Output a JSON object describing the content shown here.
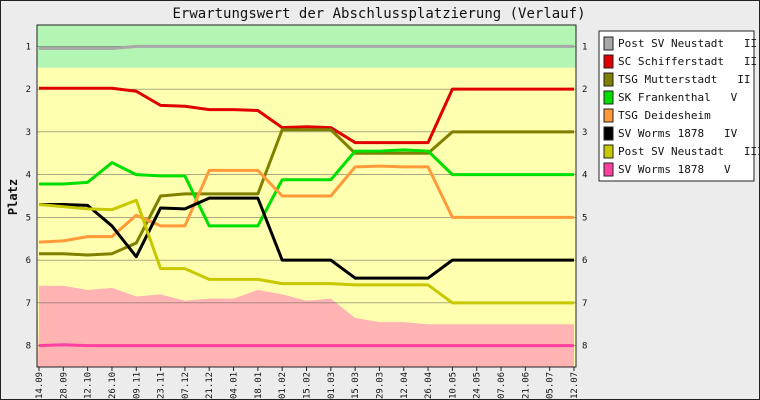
{
  "chart_data": {
    "type": "line",
    "title": "Erwartungswert der Abschlussplatzierung (Verlauf)",
    "ylabel": "Platz",
    "xlabel": "",
    "ylim": [
      8.5,
      0.5
    ],
    "y_ticks": [
      "1",
      "2",
      "3",
      "4",
      "5",
      "6",
      "7",
      "8"
    ],
    "x": [
      "14.09",
      "28.09",
      "12.10",
      "26.10",
      "09.11",
      "23.11",
      "07.12",
      "21.12",
      "04.01",
      "18.01",
      "01.02",
      "15.02",
      "01.03",
      "15.03",
      "29.03",
      "12.04",
      "26.04",
      "10.05",
      "24.05",
      "07.06",
      "21.06",
      "05.07",
      "12.07"
    ],
    "background_bands": [
      {
        "from": 0.5,
        "to": 1.5,
        "color": "#b3f5b3"
      },
      {
        "from": 1.5,
        "to": 8.5,
        "color": "#ffffb0"
      }
    ],
    "relegation_area": {
      "color": "#ffb3b3",
      "upper_edge": [
        6.6,
        6.6,
        6.7,
        6.65,
        6.85,
        6.8,
        6.95,
        6.9,
        6.9,
        6.7,
        6.8,
        6.95,
        6.9,
        7.35,
        7.45,
        7.45,
        7.5,
        7.5,
        7.5,
        7.5,
        7.5,
        7.5,
        7.5
      ]
    },
    "legend_position": "right",
    "series": [
      {
        "name": "Post SV Neustadt   II",
        "color": "#a8a8a8",
        "values": [
          1.05,
          1.05,
          1.05,
          1.05,
          1.0,
          1.0,
          1.0,
          1.0,
          1.0,
          1.0,
          1.0,
          1.0,
          1.0,
          1.0,
          1.0,
          1.0,
          1.0,
          1.0,
          1.0,
          1.0,
          1.0,
          1.0,
          1.0
        ]
      },
      {
        "name": "SC Schifferstadt   II",
        "color": "#e00000",
        "values": [
          1.98,
          1.98,
          1.98,
          1.98,
          2.05,
          2.38,
          2.4,
          2.48,
          2.48,
          2.5,
          2.9,
          2.88,
          2.9,
          3.25,
          3.25,
          3.25,
          3.25,
          2.0,
          2.0,
          2.0,
          2.0,
          2.0,
          2.0
        ]
      },
      {
        "name": "TSG Mutterstadt   II",
        "color": "#808000",
        "values": [
          5.85,
          5.85,
          5.88,
          5.85,
          5.6,
          4.5,
          4.45,
          4.45,
          4.45,
          4.45,
          2.95,
          2.95,
          2.95,
          3.5,
          3.5,
          3.5,
          3.5,
          3.0,
          3.0,
          3.0,
          3.0,
          3.0,
          3.0
        ]
      },
      {
        "name": "SK Frankenthal   V",
        "color": "#00e000",
        "values": [
          4.22,
          4.22,
          4.18,
          3.72,
          4.0,
          4.03,
          4.03,
          5.2,
          5.2,
          5.2,
          4.12,
          4.12,
          4.12,
          3.45,
          3.45,
          3.42,
          3.45,
          4.0,
          4.0,
          4.0,
          4.0,
          4.0,
          4.0
        ]
      },
      {
        "name": "TSG Deidesheim",
        "color": "#ff9a3a",
        "values": [
          5.58,
          5.55,
          5.45,
          5.45,
          4.95,
          5.2,
          5.2,
          3.9,
          3.9,
          3.9,
          4.5,
          4.5,
          4.5,
          3.82,
          3.8,
          3.82,
          3.82,
          5.0,
          5.0,
          5.0,
          5.0,
          5.0,
          5.0
        ]
      },
      {
        "name": "SV Worms 1878   IV",
        "color": "#000000",
        "values": [
          4.7,
          4.7,
          4.72,
          5.2,
          5.92,
          4.78,
          4.8,
          4.55,
          4.55,
          4.55,
          6.0,
          6.0,
          6.0,
          6.42,
          6.42,
          6.42,
          6.42,
          6.0,
          6.0,
          6.0,
          6.0,
          6.0,
          6.0
        ]
      },
      {
        "name": "Post SV Neustadt   III",
        "color": "#c8c800",
        "values": [
          4.7,
          4.75,
          4.8,
          4.82,
          4.6,
          6.2,
          6.2,
          6.45,
          6.45,
          6.45,
          6.55,
          6.55,
          6.55,
          6.58,
          6.58,
          6.58,
          6.58,
          7.0,
          7.0,
          7.0,
          7.0,
          7.0,
          7.0
        ]
      },
      {
        "name": "SV Worms 1878   V",
        "color": "#ff40a0",
        "values": [
          8.0,
          7.98,
          8.0,
          8.0,
          8.0,
          8.0,
          8.0,
          8.0,
          8.0,
          8.0,
          8.0,
          8.0,
          8.0,
          8.0,
          8.0,
          8.0,
          8.0,
          8.0,
          8.0,
          8.0,
          8.0,
          8.0,
          8.0
        ]
      }
    ]
  }
}
